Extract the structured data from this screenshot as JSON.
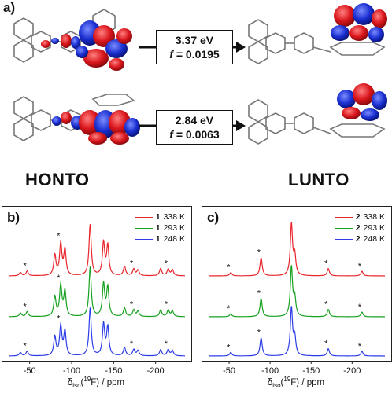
{
  "panel_a": {
    "label": "a)",
    "transitions": [
      {
        "energy": "3.37 eV",
        "f_symbol": "f",
        "f_value": "= 0.0195"
      },
      {
        "energy": "2.84 eV",
        "f_symbol": "f",
        "f_value": "= 0.0063"
      }
    ],
    "caption_left": "HONTO",
    "caption_right": "LUNTO",
    "colors": {
      "lobe_red": "#d9161c",
      "lobe_blue": "#1a2fd1",
      "bond": "#777777"
    }
  },
  "panel_b": {
    "label": "b)",
    "legend": [
      {
        "compound": "1",
        "temp": "338 K",
        "color": "#e8262b"
      },
      {
        "compound": "1",
        "temp": "293 K",
        "color": "#16a020"
      },
      {
        "compound": "1",
        "temp": "248 K",
        "color": "#2c3de6"
      }
    ],
    "ticks": [
      "-50",
      "-100",
      "-150",
      "-200"
    ],
    "axis_prefix": "δ",
    "axis_sub": "iso",
    "axis_open": "(",
    "axis_sup": "19",
    "axis_rest": "F) / ppm",
    "marker": "*"
  },
  "panel_c": {
    "label": "c)",
    "legend": [
      {
        "compound": "2",
        "temp": "338 K",
        "color": "#e8262b"
      },
      {
        "compound": "2",
        "temp": "293 K",
        "color": "#16a020"
      },
      {
        "compound": "2",
        "temp": "248 K",
        "color": "#2c3de6"
      }
    ],
    "ticks": [
      "-50",
      "-100",
      "-150",
      "-200"
    ],
    "axis_prefix": "δ",
    "axis_sub": "iso",
    "axis_open": "(",
    "axis_sup": "19",
    "axis_rest": "F) / ppm",
    "marker": "*"
  },
  "chart_data": [
    {
      "type": "line",
      "xlim": [
        -25,
        -235
      ],
      "series": [
        {
          "name": "1 338 K",
          "color": "#e8262b",
          "peaks": [
            [
              -39,
              0.1
            ],
            [
              -47,
              0.14
            ],
            [
              -80,
              0.62
            ],
            [
              -87,
              0.95
            ],
            [
              -92,
              0.78
            ],
            [
              -122,
              1.55
            ],
            [
              -138,
              1.0
            ],
            [
              -143,
              0.9
            ],
            [
              -163,
              0.28
            ],
            [
              -174,
              0.2
            ],
            [
              -179,
              0.17
            ],
            [
              -206,
              0.22
            ],
            [
              -215,
              0.2
            ],
            [
              -220,
              0.18
            ]
          ],
          "spinning_sidebands_ppm": [
            -47,
            -87,
            -174,
            -215
          ]
        },
        {
          "name": "1 293 K",
          "color": "#16a020",
          "peaks": [
            [
              -39,
              0.11
            ],
            [
              -47,
              0.15
            ],
            [
              -80,
              0.6
            ],
            [
              -87,
              0.92
            ],
            [
              -92,
              0.76
            ],
            [
              -122,
              1.5
            ],
            [
              -138,
              0.98
            ],
            [
              -143,
              0.88
            ],
            [
              -163,
              0.26
            ],
            [
              -174,
              0.2
            ],
            [
              -179,
              0.16
            ],
            [
              -206,
              0.2
            ],
            [
              -215,
              0.2
            ],
            [
              -220,
              0.17
            ]
          ],
          "spinning_sidebands_ppm": [
            -47,
            -87,
            -174,
            -215
          ]
        },
        {
          "name": "1 248 K",
          "color": "#2c3de6",
          "peaks": [
            [
              -39,
              0.1
            ],
            [
              -47,
              0.14
            ],
            [
              -80,
              0.58
            ],
            [
              -87,
              0.88
            ],
            [
              -92,
              0.74
            ],
            [
              -122,
              1.45
            ],
            [
              -138,
              0.95
            ],
            [
              -143,
              0.86
            ],
            [
              -163,
              0.25
            ],
            [
              -174,
              0.19
            ],
            [
              -179,
              0.16
            ],
            [
              -206,
              0.19
            ],
            [
              -215,
              0.19
            ],
            [
              -220,
              0.16
            ]
          ],
          "spinning_sidebands_ppm": [
            -47,
            -87,
            -174,
            -215
          ]
        }
      ]
    },
    {
      "type": "line",
      "xlim": [
        -25,
        -240
      ],
      "series": [
        {
          "name": "2 338 K",
          "color": "#e8262b",
          "peaks": [
            [
              -52,
              0.1
            ],
            [
              -89,
              0.55
            ],
            [
              -126,
              1.55
            ],
            [
              -130,
              0.6
            ],
            [
              -171,
              0.22
            ],
            [
              -212,
              0.14
            ]
          ],
          "spinning_sidebands_ppm": [
            -52,
            -89,
            -171,
            -212
          ]
        },
        {
          "name": "2 293 K",
          "color": "#16a020",
          "peaks": [
            [
              -52,
              0.09
            ],
            [
              -89,
              0.55
            ],
            [
              -126,
              1.5
            ],
            [
              -130,
              0.55
            ],
            [
              -171,
              0.22
            ],
            [
              -212,
              0.14
            ]
          ],
          "spinning_sidebands_ppm": [
            -52,
            -89,
            -171,
            -212
          ]
        },
        {
          "name": "2 248 K",
          "color": "#2c3de6",
          "peaks": [
            [
              -52,
              0.11
            ],
            [
              -89,
              0.55
            ],
            [
              -126,
              1.45
            ],
            [
              -130,
              0.55
            ],
            [
              -171,
              0.22
            ],
            [
              -212,
              0.14
            ]
          ],
          "spinning_sidebands_ppm": [
            -52,
            -89,
            -171,
            -212
          ]
        }
      ]
    }
  ]
}
